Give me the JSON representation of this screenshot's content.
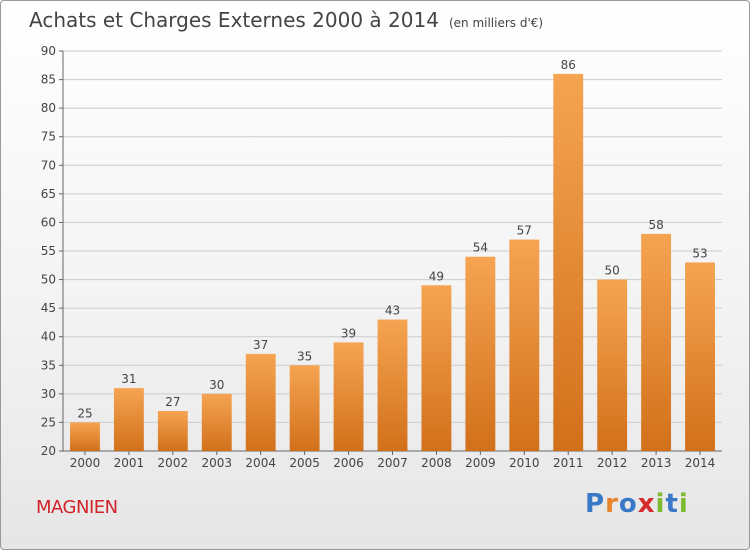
{
  "header": {
    "title": "Achats et Charges Externes 2000 à 2014",
    "unit": "(en milliers d'€)"
  },
  "footer": {
    "town": "MAGNIEN",
    "logo_text": "Proxiti",
    "logo_colors": [
      "#3a78c8",
      "#e8832a",
      "#3a78c8",
      "#d62b2b",
      "#7cbb2e",
      "#3a78c8",
      "#7cbb2e"
    ]
  },
  "colors": {
    "bar_top": "#f5a452",
    "bar_bottom": "#d2701a",
    "axis": "#666666",
    "grid": "#cccccc",
    "text": "#444444"
  },
  "chart_data": {
    "type": "bar",
    "title": "Achats et Charges Externes 2000 à 2014",
    "subtitle": "(en milliers d'€)",
    "categories": [
      "2000",
      "2001",
      "2002",
      "2003",
      "2004",
      "2005",
      "2006",
      "2007",
      "2008",
      "2009",
      "2010",
      "2011",
      "2012",
      "2013",
      "2014"
    ],
    "values": [
      25,
      31,
      27,
      30,
      37,
      35,
      39,
      43,
      49,
      54,
      57,
      86,
      50,
      58,
      53
    ],
    "ylim": [
      20,
      90
    ],
    "yticks": [
      20,
      25,
      30,
      35,
      40,
      45,
      50,
      55,
      60,
      65,
      70,
      75,
      80,
      85,
      90
    ],
    "grid": true,
    "data_labels": true
  }
}
